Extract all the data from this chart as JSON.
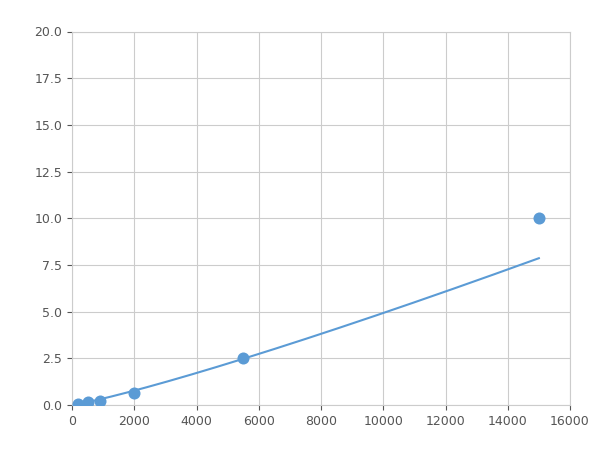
{
  "x": [
    200,
    500,
    900,
    2000,
    5500,
    15000
  ],
  "y": [
    0.08,
    0.15,
    0.2,
    0.65,
    2.5,
    10.0
  ],
  "line_color": "#5b9bd5",
  "marker_color": "#5b9bd5",
  "marker_size": 5,
  "xlim": [
    0,
    16000
  ],
  "ylim": [
    0,
    20.0
  ],
  "xticks": [
    0,
    2000,
    4000,
    6000,
    8000,
    10000,
    12000,
    14000,
    16000
  ],
  "yticks": [
    0.0,
    2.5,
    5.0,
    7.5,
    10.0,
    12.5,
    15.0,
    17.5,
    20.0
  ],
  "grid": true,
  "background_color": "#ffffff",
  "figure_width": 6.0,
  "figure_height": 4.5,
  "dpi": 100
}
